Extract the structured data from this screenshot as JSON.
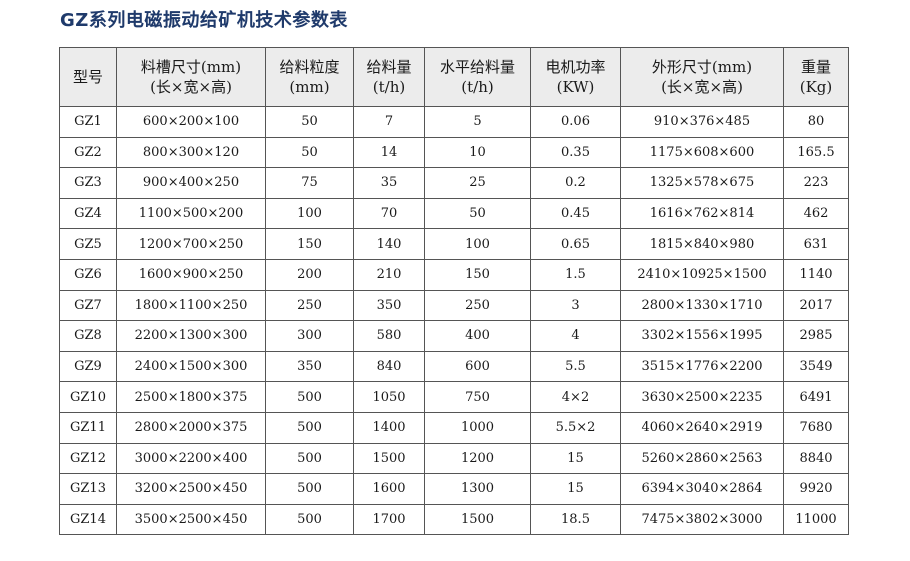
{
  "title": "GZ系列电磁振动给矿机技术参数表",
  "table": {
    "headers": [
      {
        "line1": "型号",
        "line2": ""
      },
      {
        "line1": "料槽尺寸(mm)",
        "line2": "(长×宽×高)"
      },
      {
        "line1": "给料粒度",
        "line2": "(mm)"
      },
      {
        "line1": "给料量",
        "line2": "(t/h)"
      },
      {
        "line1": "水平给料量",
        "line2": "(t/h)"
      },
      {
        "line1": "电机功率",
        "line2": "(KW)"
      },
      {
        "line1": "外形尺寸(mm)",
        "line2": "(长×宽×高)"
      },
      {
        "line1": "重量",
        "line2": "(Kg)"
      }
    ],
    "rows": [
      [
        "GZ1",
        "600×200×100",
        "50",
        "7",
        "5",
        "0.06",
        "910×376×485",
        "80"
      ],
      [
        "GZ2",
        "800×300×120",
        "50",
        "14",
        "10",
        "0.35",
        "1175×608×600",
        "165.5"
      ],
      [
        "GZ3",
        "900×400×250",
        "75",
        "35",
        "25",
        "0.2",
        "1325×578×675",
        "223"
      ],
      [
        "GZ4",
        "1100×500×200",
        "100",
        "70",
        "50",
        "0.45",
        "1616×762×814",
        "462"
      ],
      [
        "GZ5",
        "1200×700×250",
        "150",
        "140",
        "100",
        "0.65",
        "1815×840×980",
        "631"
      ],
      [
        "GZ6",
        "1600×900×250",
        "200",
        "210",
        "150",
        "1.5",
        "2410×10925×1500",
        "1140"
      ],
      [
        "GZ7",
        "1800×1100×250",
        "250",
        "350",
        "250",
        "3",
        "2800×1330×1710",
        "2017"
      ],
      [
        "GZ8",
        "2200×1300×300",
        "300",
        "580",
        "400",
        "4",
        "3302×1556×1995",
        "2985"
      ],
      [
        "GZ9",
        "2400×1500×300",
        "350",
        "840",
        "600",
        "5.5",
        "3515×1776×2200",
        "3549"
      ],
      [
        "GZ10",
        "2500×1800×375",
        "500",
        "1050",
        "750",
        "4×2",
        "3630×2500×2235",
        "6491"
      ],
      [
        "GZ11",
        "2800×2000×375",
        "500",
        "1400",
        "1000",
        "5.5×2",
        "4060×2640×2919",
        "7680"
      ],
      [
        "GZ12",
        "3000×2200×400",
        "500",
        "1500",
        "1200",
        "15",
        "5260×2860×2563",
        "8840"
      ],
      [
        "GZ13",
        "3200×2500×450",
        "500",
        "1600",
        "1300",
        "15",
        "6394×3040×2864",
        "9920"
      ],
      [
        "GZ14",
        "3500×2500×450",
        "500",
        "1700",
        "1500",
        "18.5",
        "7475×3802×3000",
        "11000"
      ]
    ]
  }
}
